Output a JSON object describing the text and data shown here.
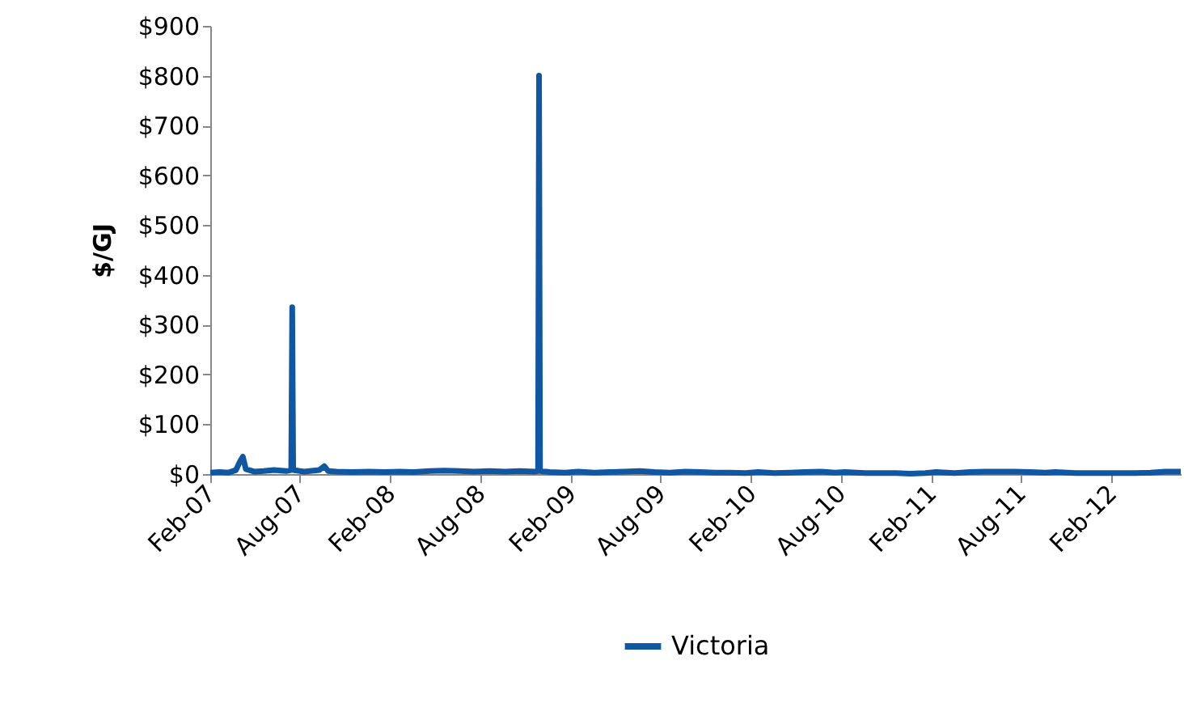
{
  "chart_data": {
    "type": "line",
    "ylabel": "$/GJ",
    "x": [
      "2007-02-01",
      "2007-02-20",
      "2007-03-10",
      "2007-03-25",
      "2007-04-02",
      "2007-04-08",
      "2007-04-14",
      "2007-05-01",
      "2007-05-20",
      "2007-06-10",
      "2007-07-05",
      "2007-07-15",
      "2007-07-17",
      "2007-07-19",
      "2007-08-10",
      "2007-09-10",
      "2007-09-20",
      "2007-09-28",
      "2007-10-15",
      "2007-11-15",
      "2007-12-20",
      "2008-01-20",
      "2008-02-20",
      "2008-03-20",
      "2008-04-20",
      "2008-05-20",
      "2008-06-20",
      "2008-07-20",
      "2008-08-20",
      "2008-09-20",
      "2008-10-20",
      "2008-11-20",
      "2008-11-26",
      "2008-11-28",
      "2008-11-30",
      "2008-12-20",
      "2009-01-20",
      "2009-02-15",
      "2009-03-20",
      "2009-04-20",
      "2009-05-20",
      "2009-06-20",
      "2009-07-20",
      "2009-08-20",
      "2009-09-20",
      "2009-10-20",
      "2009-11-20",
      "2009-12-20",
      "2010-01-20",
      "2010-02-15",
      "2010-03-20",
      "2010-04-20",
      "2010-05-20",
      "2010-06-20",
      "2010-07-20",
      "2010-08-10",
      "2010-09-20",
      "2010-10-20",
      "2010-11-20",
      "2010-12-20",
      "2011-01-20",
      "2011-02-10",
      "2011-03-20",
      "2011-04-20",
      "2011-05-20",
      "2011-06-20",
      "2011-07-20",
      "2011-08-20",
      "2011-09-20",
      "2011-10-10",
      "2011-11-20",
      "2011-12-20",
      "2012-01-20",
      "2012-02-20",
      "2012-03-20",
      "2012-04-20",
      "2012-05-20",
      "2012-06-20"
    ],
    "series": [
      {
        "name": "Victoria",
        "color": "#0f56a3",
        "values": [
          3,
          4,
          3,
          8,
          25,
          35,
          10,
          5,
          6,
          8,
          6,
          8,
          335,
          8,
          5,
          8,
          16,
          6,
          5,
          4,
          5,
          4,
          5,
          4,
          6,
          7,
          6,
          5,
          6,
          5,
          6,
          5,
          6,
          800,
          6,
          4,
          3,
          5,
          3,
          4,
          5,
          6,
          4,
          3,
          5,
          4,
          3,
          3,
          2,
          4,
          2,
          3,
          4,
          5,
          3,
          4,
          2,
          2,
          2,
          1,
          2,
          4,
          2,
          4,
          5,
          5,
          5,
          4,
          3,
          4,
          2,
          2,
          2,
          2,
          2,
          3,
          5,
          5
        ]
      }
    ],
    "xlim": [
      "2007-02-01",
      "2012-06-20"
    ],
    "xticks": [
      {
        "value": "2007-02-01",
        "label": "Feb-07"
      },
      {
        "value": "2007-08-01",
        "label": "Aug-07"
      },
      {
        "value": "2008-02-01",
        "label": "Feb-08"
      },
      {
        "value": "2008-08-01",
        "label": "Aug-08"
      },
      {
        "value": "2009-02-01",
        "label": "Feb-09"
      },
      {
        "value": "2009-08-01",
        "label": "Aug-09"
      },
      {
        "value": "2010-02-01",
        "label": "Feb-10"
      },
      {
        "value": "2010-08-01",
        "label": "Aug-10"
      },
      {
        "value": "2011-02-01",
        "label": "Feb-11"
      },
      {
        "value": "2011-08-01",
        "label": "Aug-11"
      },
      {
        "value": "2012-02-01",
        "label": "Feb-12"
      }
    ],
    "ylim": [
      0,
      900
    ],
    "yticks": [
      {
        "value": 0,
        "label": "$0"
      },
      {
        "value": 100,
        "label": "$100"
      },
      {
        "value": 200,
        "label": "$200"
      },
      {
        "value": 300,
        "label": "$300"
      },
      {
        "value": 400,
        "label": "$400"
      },
      {
        "value": 500,
        "label": "$500"
      },
      {
        "value": 600,
        "label": "$600"
      },
      {
        "value": 700,
        "label": "$700"
      },
      {
        "value": 800,
        "label": "$800"
      },
      {
        "value": 900,
        "label": "$900"
      }
    ],
    "grid": false,
    "legend": "bottom",
    "marker": "none",
    "line_style": "solid"
  }
}
